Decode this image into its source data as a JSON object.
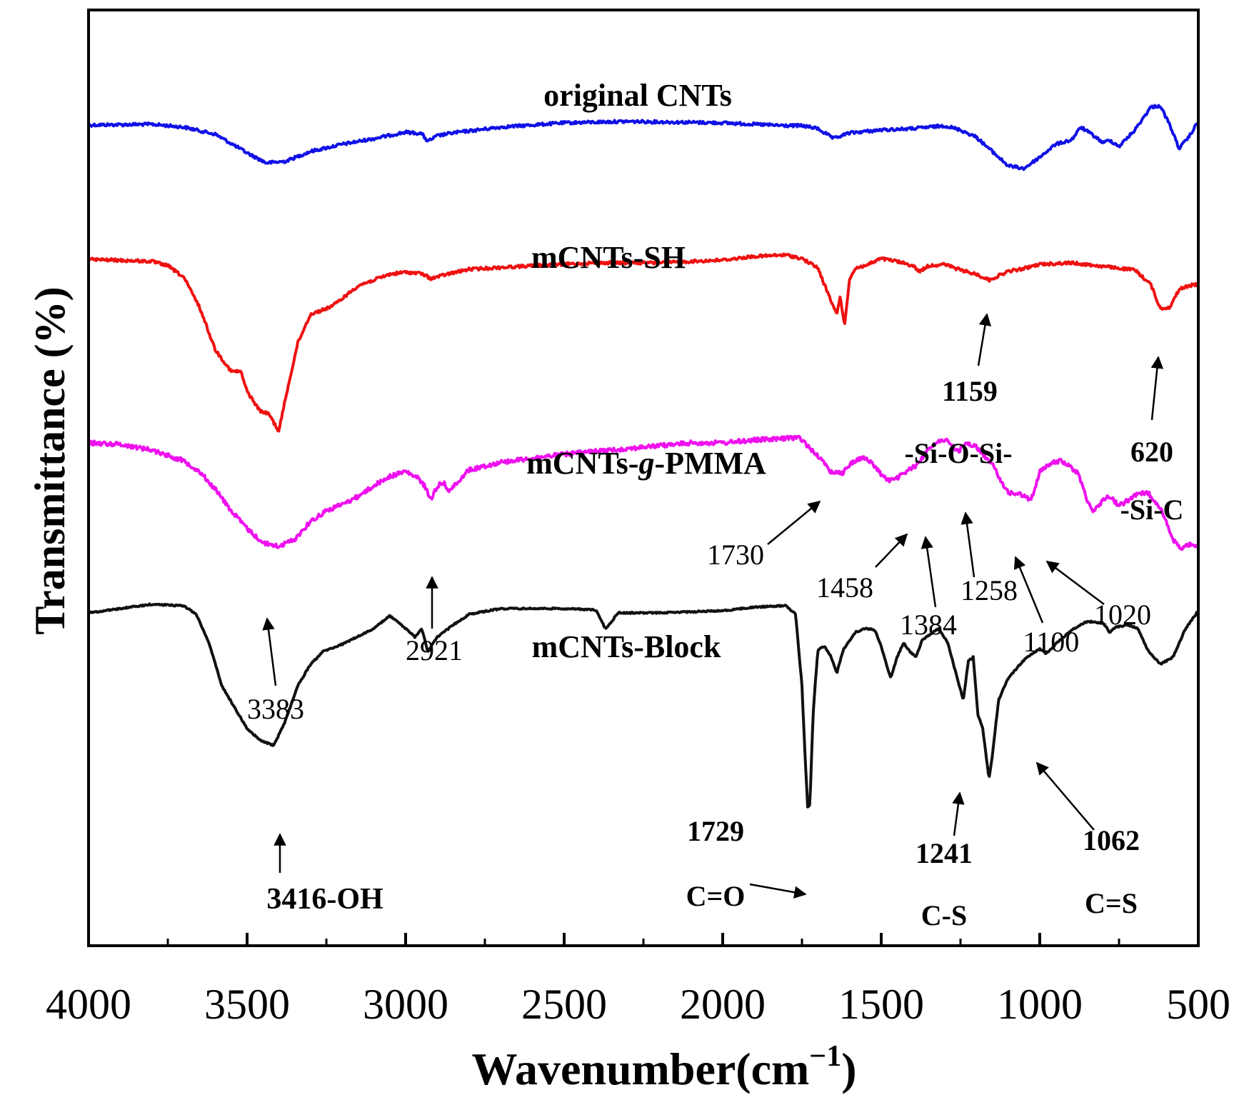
{
  "chart_data": {
    "type": "line",
    "title": "",
    "xlabel_main": "Wavenumber(cm",
    "xlabel_sup": "−1",
    "xlabel_close": ")",
    "ylabel": "Transmittance (%)",
    "xlim": [
      4000,
      500
    ],
    "x_reversed": true,
    "xticks": [
      4000,
      3500,
      3000,
      2500,
      2000,
      1500,
      1000,
      500
    ],
    "yticks": false,
    "grid": false,
    "series": [
      {
        "name": "original CNTs",
        "color": "#1010e6",
        "noise": 4,
        "baseline": [
          [
            4000,
            175
          ],
          [
            3800,
            174
          ],
          [
            3700,
            178
          ],
          [
            3600,
            188
          ],
          [
            3500,
            214
          ],
          [
            3440,
            228
          ],
          [
            3380,
            226
          ],
          [
            3300,
            212
          ],
          [
            3200,
            202
          ],
          [
            3100,
            194
          ],
          [
            3000,
            185
          ],
          [
            2950,
            187
          ],
          [
            2930,
            198
          ],
          [
            2900,
            190
          ],
          [
            2850,
            186
          ],
          [
            2700,
            178
          ],
          [
            2500,
            172
          ],
          [
            2300,
            170
          ],
          [
            2000,
            172
          ],
          [
            1800,
            176
          ],
          [
            1750,
            176
          ],
          [
            1700,
            180
          ],
          [
            1650,
            194
          ],
          [
            1600,
            186
          ],
          [
            1500,
            182
          ],
          [
            1400,
            180
          ],
          [
            1300,
            176
          ],
          [
            1250,
            182
          ],
          [
            1200,
            192
          ],
          [
            1150,
            212
          ],
          [
            1100,
            232
          ],
          [
            1050,
            236
          ],
          [
            1000,
            220
          ],
          [
            950,
            202
          ],
          [
            900,
            196
          ],
          [
            870,
            178
          ],
          [
            830,
            190
          ],
          [
            800,
            200
          ],
          [
            780,
            196
          ],
          [
            750,
            205
          ],
          [
            700,
            182
          ],
          [
            650,
            150
          ],
          [
            620,
            148
          ],
          [
            590,
            175
          ],
          [
            560,
            208
          ],
          [
            530,
            192
          ],
          [
            500,
            170
          ]
        ]
      },
      {
        "name": "mCNTs-SH",
        "color": "#ee1111",
        "noise": 4,
        "baseline": [
          [
            4000,
            363
          ],
          [
            3800,
            366
          ],
          [
            3750,
            372
          ],
          [
            3700,
            388
          ],
          [
            3650,
            430
          ],
          [
            3600,
            490
          ],
          [
            3550,
            520
          ],
          [
            3520,
            520
          ],
          [
            3500,
            548
          ],
          [
            3460,
            575
          ],
          [
            3430,
            580
          ],
          [
            3400,
            604
          ],
          [
            3380,
            560
          ],
          [
            3340,
            480
          ],
          [
            3300,
            440
          ],
          [
            3250,
            432
          ],
          [
            3220,
            425
          ],
          [
            3150,
            400
          ],
          [
            3050,
            384
          ],
          [
            3000,
            381
          ],
          [
            2950,
            383
          ],
          [
            2920,
            390
          ],
          [
            2870,
            384
          ],
          [
            2800,
            377
          ],
          [
            2600,
            372
          ],
          [
            2400,
            368
          ],
          [
            2200,
            368
          ],
          [
            2000,
            364
          ],
          [
            1900,
            359
          ],
          [
            1800,
            357
          ],
          [
            1750,
            362
          ],
          [
            1700,
            375
          ],
          [
            1660,
            420
          ],
          [
            1640,
            440
          ],
          [
            1630,
            415
          ],
          [
            1615,
            455
          ],
          [
            1600,
            390
          ],
          [
            1580,
            375
          ],
          [
            1550,
            372
          ],
          [
            1500,
            362
          ],
          [
            1450,
            366
          ],
          [
            1400,
            372
          ],
          [
            1380,
            380
          ],
          [
            1350,
            372
          ],
          [
            1300,
            370
          ],
          [
            1250,
            378
          ],
          [
            1200,
            384
          ],
          [
            1159,
            392
          ],
          [
            1100,
            380
          ],
          [
            1050,
            376
          ],
          [
            1000,
            370
          ],
          [
            900,
            368
          ],
          [
            800,
            373
          ],
          [
            700,
            378
          ],
          [
            650,
            398
          ],
          [
            620,
            432
          ],
          [
            590,
            430
          ],
          [
            560,
            405
          ],
          [
            530,
            400
          ],
          [
            500,
            398
          ]
        ]
      },
      {
        "name": "mCNTs-g-PMMA",
        "color": "#ee11ee",
        "noise": 6,
        "baseline": [
          [
            4000,
            620
          ],
          [
            3900,
            622
          ],
          [
            3800,
            630
          ],
          [
            3700,
            645
          ],
          [
            3650,
            660
          ],
          [
            3600,
            685
          ],
          [
            3550,
            715
          ],
          [
            3500,
            740
          ],
          [
            3450,
            760
          ],
          [
            3400,
            765
          ],
          [
            3350,
            755
          ],
          [
            3300,
            730
          ],
          [
            3250,
            715
          ],
          [
            3200,
            706
          ],
          [
            3150,
            695
          ],
          [
            3100,
            680
          ],
          [
            3050,
            667
          ],
          [
            3000,
            660
          ],
          [
            2960,
            670
          ],
          [
            2940,
            680
          ],
          [
            2921,
            700
          ],
          [
            2900,
            680
          ],
          [
            2880,
            676
          ],
          [
            2860,
            688
          ],
          [
            2840,
            676
          ],
          [
            2800,
            658
          ],
          [
            2700,
            647
          ],
          [
            2500,
            636
          ],
          [
            2300,
            628
          ],
          [
            2100,
            620
          ],
          [
            2000,
            620
          ],
          [
            1900,
            616
          ],
          [
            1800,
            614
          ],
          [
            1760,
            612
          ],
          [
            1730,
            625
          ],
          [
            1700,
            638
          ],
          [
            1660,
            660
          ],
          [
            1620,
            662
          ],
          [
            1600,
            650
          ],
          [
            1560,
            640
          ],
          [
            1530,
            648
          ],
          [
            1500,
            664
          ],
          [
            1480,
            672
          ],
          [
            1458,
            672
          ],
          [
            1420,
            660
          ],
          [
            1384,
            650
          ],
          [
            1350,
            626
          ],
          [
            1300,
            615
          ],
          [
            1280,
            622
          ],
          [
            1258,
            632
          ],
          [
            1230,
            620
          ],
          [
            1200,
            626
          ],
          [
            1150,
            650
          ],
          [
            1100,
            690
          ],
          [
            1060,
            692
          ],
          [
            1030,
            700
          ],
          [
            1020,
            690
          ],
          [
            1000,
            660
          ],
          [
            960,
            648
          ],
          [
            930,
            645
          ],
          [
            880,
            662
          ],
          [
            850,
            700
          ],
          [
            830,
            716
          ],
          [
            800,
            700
          ],
          [
            780,
            694
          ],
          [
            750,
            708
          ],
          [
            700,
            694
          ],
          [
            660,
            689
          ],
          [
            620,
            710
          ],
          [
            580,
            756
          ],
          [
            550,
            768
          ],
          [
            520,
            760
          ],
          [
            500,
            770
          ]
        ]
      },
      {
        "name": "mCNTs-Block",
        "color": "#111111",
        "noise": 2,
        "baseline": [
          [
            4000,
            858
          ],
          [
            3900,
            852
          ],
          [
            3800,
            846
          ],
          [
            3700,
            848
          ],
          [
            3660,
            860
          ],
          [
            3620,
            900
          ],
          [
            3580,
            960
          ],
          [
            3540,
            990
          ],
          [
            3500,
            1020
          ],
          [
            3460,
            1036
          ],
          [
            3416,
            1044
          ],
          [
            3380,
            1010
          ],
          [
            3340,
            960
          ],
          [
            3300,
            930
          ],
          [
            3260,
            912
          ],
          [
            3200,
            902
          ],
          [
            3100,
            880
          ],
          [
            3050,
            862
          ],
          [
            3000,
            880
          ],
          [
            2970,
            892
          ],
          [
            2950,
            880
          ],
          [
            2940,
            895
          ],
          [
            2930,
            912
          ],
          [
            2900,
            892
          ],
          [
            2850,
            875
          ],
          [
            2800,
            860
          ],
          [
            2700,
            852
          ],
          [
            2500,
            852
          ],
          [
            2400,
            854
          ],
          [
            2370,
            880
          ],
          [
            2350,
            870
          ],
          [
            2330,
            858
          ],
          [
            2200,
            858
          ],
          [
            2000,
            855
          ],
          [
            1900,
            850
          ],
          [
            1800,
            848
          ],
          [
            1770,
            860
          ],
          [
            1750,
            960
          ],
          [
            1740,
            1060
          ],
          [
            1732,
            1130
          ],
          [
            1725,
            1128
          ],
          [
            1715,
            1000
          ],
          [
            1700,
            910
          ],
          [
            1680,
            905
          ],
          [
            1660,
            918
          ],
          [
            1640,
            942
          ],
          [
            1620,
            910
          ],
          [
            1580,
            885
          ],
          [
            1550,
            880
          ],
          [
            1520,
            882
          ],
          [
            1500,
            905
          ],
          [
            1470,
            950
          ],
          [
            1450,
            920
          ],
          [
            1430,
            900
          ],
          [
            1410,
            912
          ],
          [
            1390,
            920
          ],
          [
            1370,
            895
          ],
          [
            1350,
            890
          ],
          [
            1320,
            880
          ],
          [
            1290,
            900
          ],
          [
            1260,
            950
          ],
          [
            1241,
            980
          ],
          [
            1225,
            925
          ],
          [
            1210,
            920
          ],
          [
            1195,
            1000
          ],
          [
            1180,
            1020
          ],
          [
            1160,
            1090
          ],
          [
            1150,
            1060
          ],
          [
            1130,
            980
          ],
          [
            1100,
            950
          ],
          [
            1062,
            930
          ],
          [
            1040,
            920
          ],
          [
            1000,
            908
          ],
          [
            980,
            915
          ],
          [
            950,
            902
          ],
          [
            900,
            882
          ],
          [
            850,
            870
          ],
          [
            800,
            872
          ],
          [
            780,
            885
          ],
          [
            760,
            878
          ],
          [
            720,
            875
          ],
          [
            690,
            880
          ],
          [
            660,
            910
          ],
          [
            620,
            930
          ],
          [
            580,
            920
          ],
          [
            540,
            880
          ],
          [
            500,
            855
          ]
        ]
      }
    ],
    "curve_labels": [
      {
        "series": 0,
        "text": "original CNTs"
      },
      {
        "series": 1,
        "text": "mCNTs-SH"
      },
      {
        "series": 2,
        "prefix": "mCNTs-",
        "italic": "g",
        "suffix": "-PMMA"
      },
      {
        "series": 3,
        "text": "mCNTs-Block"
      }
    ],
    "annotations": [
      {
        "text": "1159",
        "bold": true
      },
      {
        "text": "-Si-O-Si-",
        "bold": true
      },
      {
        "text": "620",
        "bold": true
      },
      {
        "text": "-Si-C",
        "bold": true
      },
      {
        "text": "1730",
        "bold": false
      },
      {
        "text": "1458",
        "bold": false
      },
      {
        "text": "1384",
        "bold": false
      },
      {
        "text": "1258",
        "bold": false
      },
      {
        "text": "1100",
        "bold": false
      },
      {
        "text": "1020",
        "bold": false
      },
      {
        "text": "2921",
        "bold": false
      },
      {
        "text": "3383",
        "bold": false
      },
      {
        "text": "3416-OH",
        "bold": true
      },
      {
        "text": "1729",
        "bold": true
      },
      {
        "text": "C=O",
        "bold": true
      },
      {
        "text": "1241",
        "bold": true
      },
      {
        "text": "C-S",
        "bold": true
      },
      {
        "text": "1062",
        "bold": true
      },
      {
        "text": "C=S",
        "bold": true
      }
    ]
  }
}
